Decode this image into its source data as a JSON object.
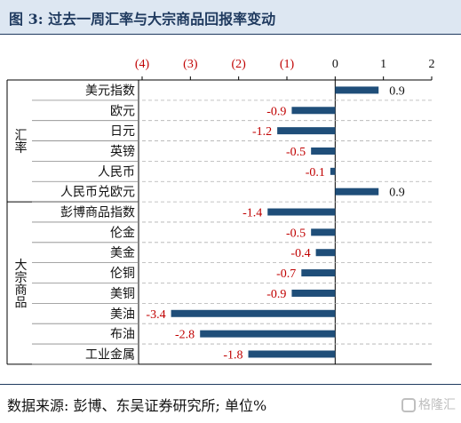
{
  "title": "图 3:  过去一周汇率与大宗商品回报率变动",
  "source": "数据来源:  彭博、东吴证券研究所;  单位%",
  "watermark": "格隆汇",
  "colors": {
    "bar": "#1f4e79",
    "negative_label": "#c00000",
    "title": "#1f3a5f",
    "header_bg": "#dde7f2"
  },
  "chart_data": {
    "type": "bar",
    "orientation": "horizontal",
    "x_tick_labels": [
      "(4)",
      "(3)",
      "(2)",
      "(1)",
      "0",
      "1",
      "2"
    ],
    "x_ticks": [
      -4,
      -3,
      -2,
      -1,
      0,
      1,
      2
    ],
    "xlim": [
      -4,
      2
    ],
    "grid": "dashed horizontal",
    "groups": [
      {
        "name": "汇率",
        "categories": [
          "美元指数",
          "欧元",
          "日元",
          "英镑",
          "人民币",
          "人民币兑欧元"
        ]
      },
      {
        "name": "大宗商品",
        "categories": [
          "彭博商品指数",
          "伦金",
          "美金",
          "伦铜",
          "美铜",
          "美油",
          "布油",
          "工业金属"
        ]
      }
    ],
    "categories": [
      "美元指数",
      "欧元",
      "日元",
      "英镑",
      "人民币",
      "人民币兑欧元",
      "彭博商品指数",
      "伦金",
      "美金",
      "伦铜",
      "美铜",
      "美油",
      "布油",
      "工业金属"
    ],
    "values": [
      0.9,
      -0.9,
      -1.2,
      -0.5,
      -0.1,
      0.9,
      -1.4,
      -0.5,
      -0.4,
      -0.7,
      -0.9,
      -3.4,
      -2.8,
      -1.8
    ]
  }
}
